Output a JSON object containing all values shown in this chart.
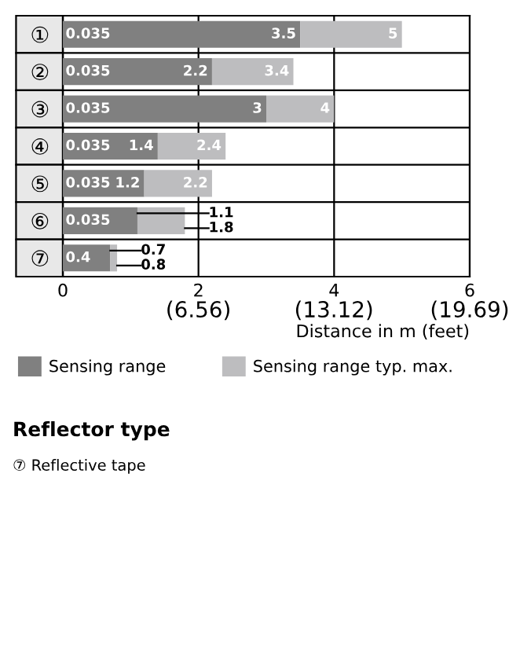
{
  "chart_data": {
    "type": "bar",
    "orientation": "horizontal",
    "stacked": true,
    "categories": [
      "①",
      "②",
      "③",
      "④",
      "⑤",
      "⑥",
      "⑦"
    ],
    "totals": [
      "5",
      "3.4",
      "4",
      "2.4",
      "2.2",
      "1.8",
      "0.8"
    ],
    "series": [
      {
        "name": "Sensing range",
        "color": "#808080",
        "values": [
          3.5,
          2.2,
          3,
          1.4,
          1.2,
          1.1,
          0.7
        ],
        "value_labels": [
          "3.5",
          "2.2",
          "3",
          "1.4",
          "1.2",
          "1.1",
          "0.7"
        ]
      },
      {
        "name": "Sensing range typ. max.",
        "color": "#bdbdbf",
        "values": [
          1.5,
          1.2,
          1.0,
          1.0,
          1.0,
          0.7,
          0.1
        ]
      }
    ],
    "xlim": [
      0,
      6
    ],
    "xticks": [
      0,
      2,
      4,
      6
    ],
    "x2lim": [
      0,
      19.69
    ],
    "x2ticks": [
      {
        "value": 6.56,
        "label": "(6.56)"
      },
      {
        "value": 13.12,
        "label": "(13.12)"
      },
      {
        "value": 19.69,
        "label": "(19.69)"
      }
    ],
    "xlabel": "Distance in m (feet)",
    "grid": "x",
    "legend": "bottom",
    "annotations": [
      "0.035",
      "0.035",
      "0.035",
      "0.035",
      "0.035",
      "0.035",
      "0.4",
      "Reflector type",
      "⑦ Reflective tape"
    ]
  }
}
